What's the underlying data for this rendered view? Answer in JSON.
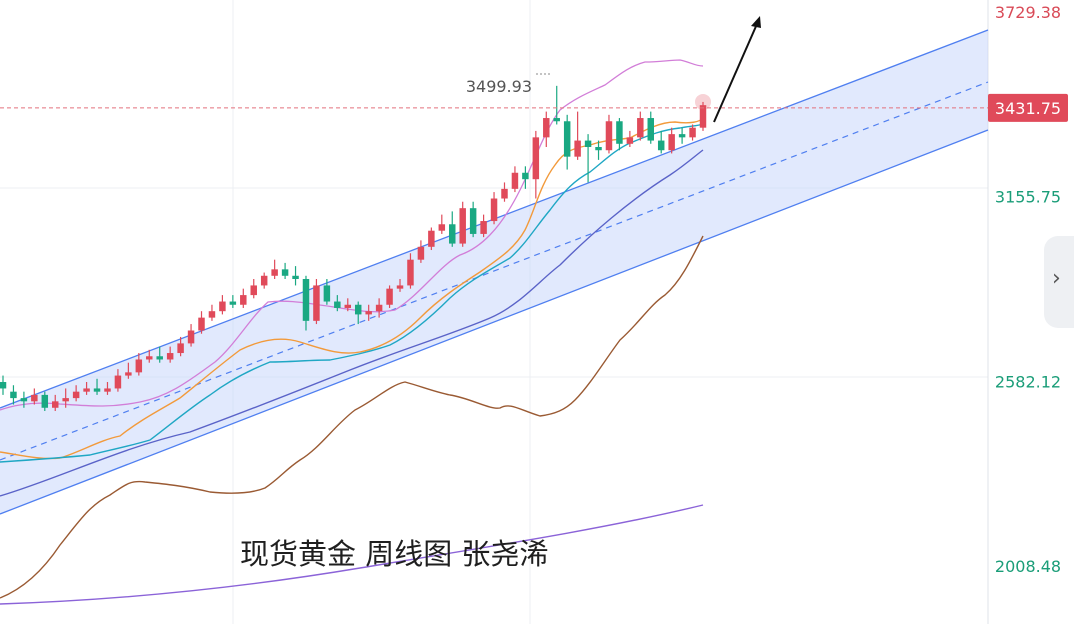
{
  "chart_data": {
    "type": "candlestick",
    "title": "现货黄金 周线图 张尧浠",
    "ylim": [
      1880,
      3780
    ],
    "y_ticks": [
      {
        "value": 3729.38,
        "label": "3729.38",
        "color": "#d94a57"
      },
      {
        "value": 3155.75,
        "label": "3155.75",
        "color": "#1a9d78"
      },
      {
        "value": 2582.12,
        "label": "2582.12",
        "color": "#1a9d78"
      },
      {
        "value": 2008.48,
        "label": "2008.48",
        "color": "#1a9d78"
      }
    ],
    "current_price": {
      "value": 3431.75,
      "label": "3431.75"
    },
    "high_annotation": {
      "value": 3499.93,
      "label": "3499.93"
    },
    "colors": {
      "up": "#e04a5a",
      "down": "#1aa882",
      "current_badge": "#e04a5a"
    },
    "candles": [
      [
        2580,
        2560,
        2600,
        2540
      ],
      [
        2550,
        2530,
        2570,
        2510
      ],
      [
        2530,
        2520,
        2550,
        2500
      ],
      [
        2520,
        2540,
        2560,
        2510
      ],
      [
        2540,
        2500,
        2550,
        2490
      ],
      [
        2500,
        2520,
        2540,
        2490
      ],
      [
        2520,
        2530,
        2560,
        2500
      ],
      [
        2530,
        2550,
        2570,
        2520
      ],
      [
        2550,
        2560,
        2580,
        2540
      ],
      [
        2560,
        2550,
        2590,
        2540
      ],
      [
        2550,
        2560,
        2580,
        2540
      ],
      [
        2560,
        2600,
        2620,
        2550
      ],
      [
        2600,
        2610,
        2640,
        2590
      ],
      [
        2610,
        2650,
        2670,
        2600
      ],
      [
        2650,
        2660,
        2680,
        2640
      ],
      [
        2660,
        2650,
        2690,
        2640
      ],
      [
        2650,
        2670,
        2690,
        2640
      ],
      [
        2670,
        2700,
        2720,
        2660
      ],
      [
        2700,
        2740,
        2760,
        2690
      ],
      [
        2740,
        2780,
        2800,
        2730
      ],
      [
        2780,
        2800,
        2820,
        2770
      ],
      [
        2800,
        2830,
        2850,
        2790
      ],
      [
        2830,
        2820,
        2850,
        2810
      ],
      [
        2820,
        2850,
        2870,
        2810
      ],
      [
        2850,
        2880,
        2900,
        2840
      ],
      [
        2880,
        2910,
        2920,
        2870
      ],
      [
        2910,
        2930,
        2960,
        2900
      ],
      [
        2930,
        2910,
        2950,
        2900
      ],
      [
        2910,
        2900,
        2940,
        2880
      ],
      [
        2900,
        2770,
        2910,
        2740
      ],
      [
        2770,
        2880,
        2900,
        2760
      ],
      [
        2880,
        2830,
        2900,
        2820
      ],
      [
        2830,
        2810,
        2850,
        2800
      ],
      [
        2810,
        2820,
        2840,
        2800
      ],
      [
        2820,
        2790,
        2830,
        2760
      ],
      [
        2790,
        2800,
        2820,
        2770
      ],
      [
        2800,
        2820,
        2840,
        2780
      ],
      [
        2820,
        2870,
        2880,
        2810
      ],
      [
        2870,
        2880,
        2900,
        2860
      ],
      [
        2880,
        2960,
        2980,
        2870
      ],
      [
        2960,
        3000,
        3020,
        2950
      ],
      [
        3000,
        3050,
        3060,
        2990
      ],
      [
        3050,
        3070,
        3100,
        3040
      ],
      [
        3070,
        3010,
        3110,
        3000
      ],
      [
        3010,
        3120,
        3140,
        3000
      ],
      [
        3120,
        3040,
        3140,
        3030
      ],
      [
        3040,
        3080,
        3100,
        3030
      ],
      [
        3080,
        3150,
        3170,
        3070
      ],
      [
        3150,
        3180,
        3200,
        3140
      ],
      [
        3180,
        3230,
        3250,
        3170
      ],
      [
        3230,
        3210,
        3250,
        3180
      ],
      [
        3210,
        3340,
        3360,
        3150
      ],
      [
        3340,
        3400,
        3420,
        3310
      ],
      [
        3400,
        3390,
        3500,
        3380
      ],
      [
        3390,
        3280,
        3410,
        3240
      ],
      [
        3280,
        3330,
        3420,
        3270
      ],
      [
        3330,
        3310,
        3350,
        3200
      ],
      [
        3310,
        3300,
        3330,
        3270
      ],
      [
        3300,
        3390,
        3410,
        3290
      ],
      [
        3390,
        3320,
        3400,
        3300
      ],
      [
        3320,
        3340,
        3360,
        3310
      ],
      [
        3340,
        3400,
        3420,
        3330
      ],
      [
        3400,
        3330,
        3420,
        3320
      ],
      [
        3330,
        3300,
        3360,
        3290
      ],
      [
        3300,
        3350,
        3370,
        3290
      ],
      [
        3350,
        3340,
        3370,
        3320
      ],
      [
        3340,
        3370,
        3380,
        3330
      ],
      [
        3370,
        3440,
        3450,
        3360
      ]
    ]
  }
}
